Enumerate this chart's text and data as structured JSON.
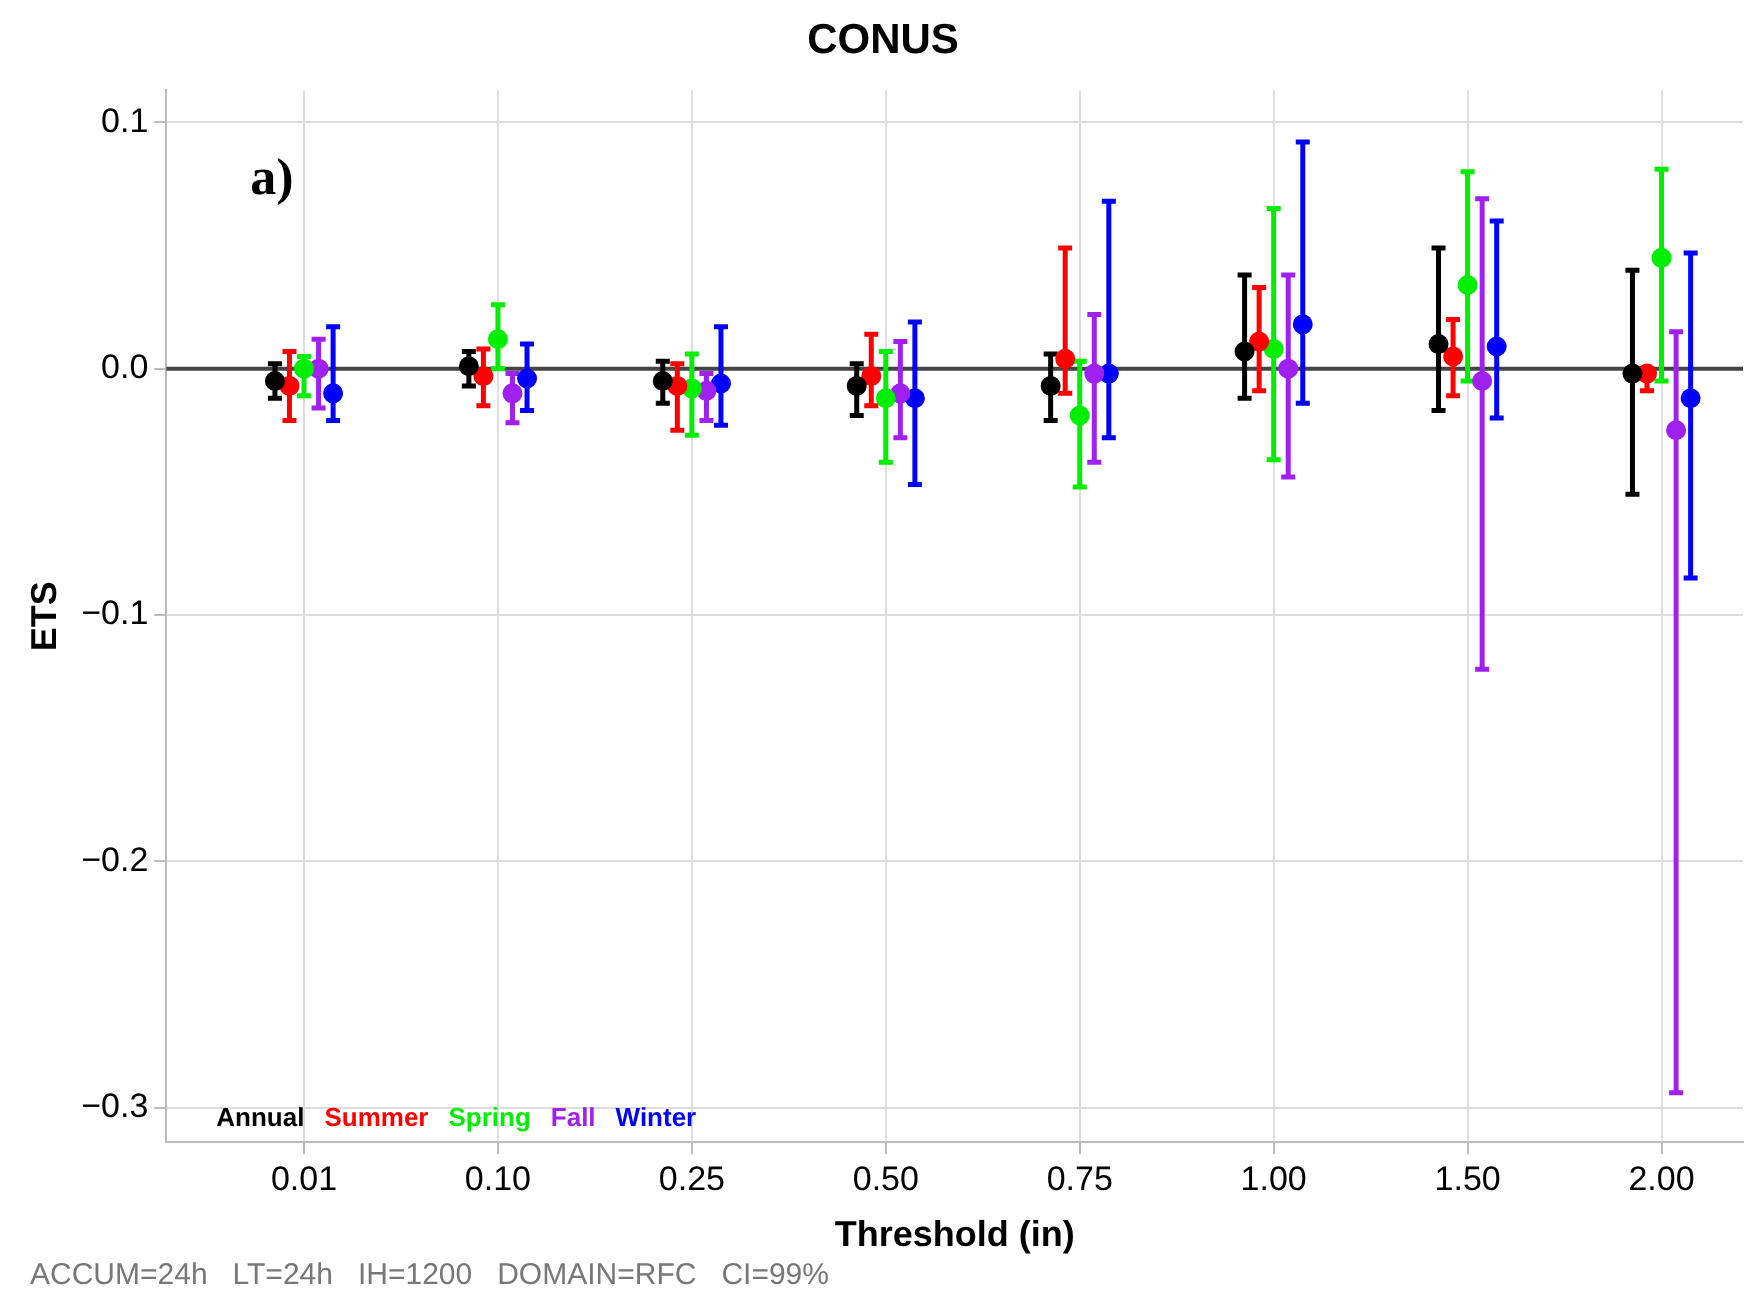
{
  "chart_data": {
    "type": "scatter",
    "title": "CONUS",
    "xlabel": "Threshold (in)",
    "ylabel": "ETS",
    "categories": [
      "0.01",
      "0.10",
      "0.25",
      "0.50",
      "0.75",
      "1.00",
      "1.50",
      "2.00"
    ],
    "series": [
      {
        "name": "Annual",
        "color": "#000000",
        "values": [
          -0.005,
          0.001,
          -0.005,
          -0.007,
          -0.007,
          0.007,
          0.01,
          -0.002
        ],
        "errors": [
          [
            -0.012,
            0.002
          ],
          [
            -0.007,
            0.007
          ],
          [
            -0.014,
            0.003
          ],
          [
            -0.019,
            0.002
          ],
          [
            -0.021,
            0.006
          ],
          [
            -0.012,
            0.038
          ],
          [
            -0.017,
            0.049
          ],
          [
            -0.051,
            0.04
          ]
        ]
      },
      {
        "name": "Summer",
        "color": "#ff0000",
        "values": [
          -0.007,
          -0.003,
          -0.007,
          -0.003,
          0.004,
          0.011,
          0.005,
          -0.002
        ],
        "errors": [
          [
            -0.021,
            0.007
          ],
          [
            -0.015,
            0.008
          ],
          [
            -0.025,
            0.002
          ],
          [
            -0.015,
            0.014
          ],
          [
            -0.01,
            0.049
          ],
          [
            -0.009,
            0.033
          ],
          [
            -0.011,
            0.02
          ],
          [
            -0.009,
            0.0
          ]
        ]
      },
      {
        "name": "Spring",
        "color": "#00ee00",
        "values": [
          0.0,
          0.012,
          -0.008,
          -0.012,
          -0.019,
          0.008,
          0.034,
          0.045
        ],
        "errors": [
          [
            -0.011,
            0.005
          ],
          [
            0.0,
            0.026
          ],
          [
            -0.027,
            0.006
          ],
          [
            -0.038,
            0.007
          ],
          [
            -0.048,
            0.003
          ],
          [
            -0.037,
            0.065
          ],
          [
            -0.005,
            0.08
          ],
          [
            -0.005,
            0.081
          ]
        ]
      },
      {
        "name": "Fall",
        "color": "#a020f0",
        "values": [
          0.0,
          -0.01,
          -0.009,
          -0.01,
          -0.002,
          0.0,
          -0.005,
          -0.025
        ],
        "errors": [
          [
            -0.016,
            0.012
          ],
          [
            -0.022,
            -0.002
          ],
          [
            -0.021,
            -0.002
          ],
          [
            -0.028,
            0.011
          ],
          [
            -0.038,
            0.022
          ],
          [
            -0.044,
            0.038
          ],
          [
            -0.122,
            0.069
          ],
          [
            -0.294,
            0.015
          ]
        ]
      },
      {
        "name": "Winter",
        "color": "#0000ff",
        "values": [
          -0.01,
          -0.004,
          -0.006,
          -0.012,
          -0.002,
          0.018,
          0.009,
          -0.012
        ],
        "errors": [
          [
            -0.021,
            0.017
          ],
          [
            -0.017,
            0.01
          ],
          [
            -0.023,
            0.017
          ],
          [
            -0.047,
            0.019
          ],
          [
            -0.028,
            0.068
          ],
          [
            -0.014,
            0.092
          ],
          [
            -0.02,
            0.06
          ],
          [
            -0.085,
            0.047
          ]
        ]
      }
    ],
    "ylim": [
      -0.314,
      0.113
    ],
    "yticks": [
      {
        "value": -0.3,
        "label": "−0.3"
      },
      {
        "value": -0.2,
        "label": "−0.2"
      },
      {
        "value": -0.1,
        "label": "−0.1"
      },
      {
        "value": 0,
        "label": "0.0"
      },
      {
        "value": 0.1,
        "label": "0.1"
      }
    ],
    "grid": true,
    "legend": "bottom left",
    "marker": "circle",
    "ref_lines": [
      {
        "axis": "y",
        "value": 0,
        "color": "#444444"
      }
    ],
    "annotations": [
      "a)",
      "ACCUM=24h   LT=24h   IH=1200   DOMAIN=RFC   CI=99%"
    ]
  }
}
